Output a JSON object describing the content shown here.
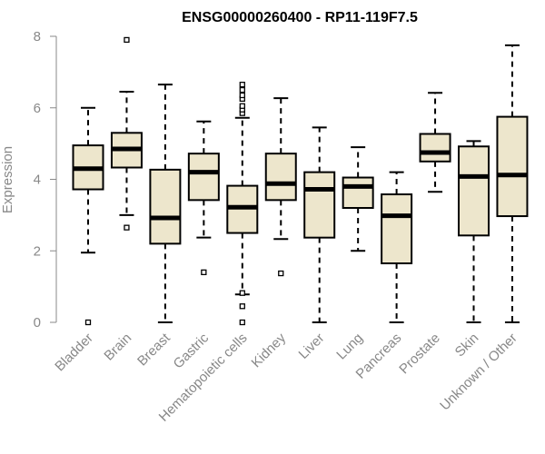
{
  "chart_data": {
    "type": "boxplot",
    "title": "ENSG00000260400 - RP11-119F7.5",
    "xlabel": "",
    "ylabel": "Expression",
    "ylim": [
      0,
      8
    ],
    "yticks": [
      0,
      2,
      4,
      6,
      8
    ],
    "grid": false,
    "box_fill": "#ede6cc",
    "categories": [
      "Bladder",
      "Brain",
      "Breast",
      "Gastric",
      "Hematopoietic cells",
      "Kidney",
      "Liver",
      "Lung",
      "Pancreas",
      "Prostate",
      "Skin",
      "Unknown / Other"
    ],
    "boxes": [
      {
        "whisker_low": 1.95,
        "q1": 3.72,
        "median": 4.3,
        "q3": 4.95,
        "whisker_high": 6.0,
        "outliers": [
          0.0
        ]
      },
      {
        "whisker_low": 3.0,
        "q1": 4.33,
        "median": 4.85,
        "q3": 5.3,
        "whisker_high": 6.45,
        "outliers": [
          2.65,
          7.9
        ]
      },
      {
        "whisker_low": 0.0,
        "q1": 2.2,
        "median": 2.92,
        "q3": 4.27,
        "whisker_high": 6.65,
        "outliers": []
      },
      {
        "whisker_low": 2.37,
        "q1": 3.42,
        "median": 4.2,
        "q3": 4.72,
        "whisker_high": 5.62,
        "outliers": [
          1.4
        ]
      },
      {
        "whisker_low": 0.78,
        "q1": 2.5,
        "median": 3.22,
        "q3": 3.82,
        "whisker_high": 5.72,
        "outliers": [
          0.0,
          0.45,
          0.82,
          5.85,
          5.95,
          6.05,
          6.25,
          6.35,
          6.5,
          6.65
        ]
      },
      {
        "whisker_low": 2.33,
        "q1": 3.42,
        "median": 3.88,
        "q3": 4.72,
        "whisker_high": 6.27,
        "outliers": [
          1.37
        ]
      },
      {
        "whisker_low": 0.0,
        "q1": 2.37,
        "median": 3.72,
        "q3": 4.2,
        "whisker_high": 5.45,
        "outliers": []
      },
      {
        "whisker_low": 2.0,
        "q1": 3.2,
        "median": 3.8,
        "q3": 4.05,
        "whisker_high": 4.9,
        "outliers": []
      },
      {
        "whisker_low": 0.0,
        "q1": 1.65,
        "median": 2.98,
        "q3": 3.58,
        "whisker_high": 4.2,
        "outliers": []
      },
      {
        "whisker_low": 3.65,
        "q1": 4.5,
        "median": 4.75,
        "q3": 5.27,
        "whisker_high": 6.42,
        "outliers": []
      },
      {
        "whisker_low": 0.0,
        "q1": 2.43,
        "median": 4.08,
        "q3": 4.92,
        "whisker_high": 5.07,
        "outliers": []
      },
      {
        "whisker_low": 0.0,
        "q1": 2.97,
        "median": 4.12,
        "q3": 5.75,
        "whisker_high": 7.75,
        "outliers": []
      }
    ]
  }
}
